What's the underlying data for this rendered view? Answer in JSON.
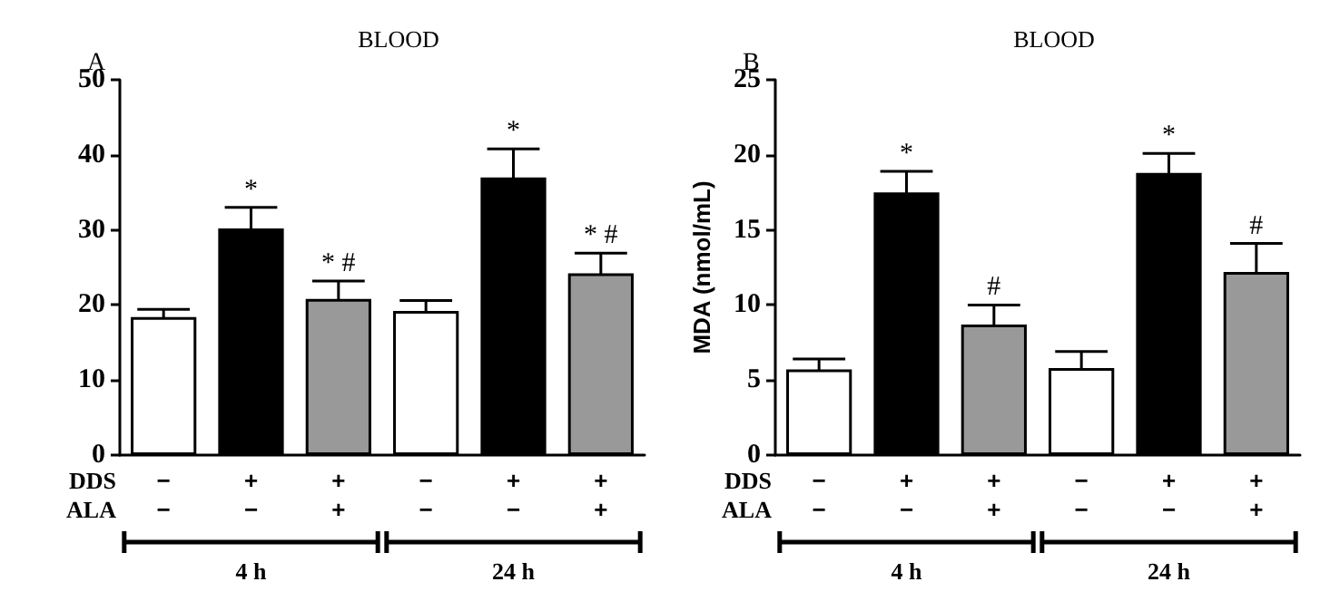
{
  "chart_data": [
    {
      "type": "bar",
      "title": "BLOOD",
      "categories": [
        "−\n−",
        "+\n−",
        "+\n+",
        "−\n−",
        "+\n−",
        "+\n+"
      ],
      "values": [
        18.4,
        30.2,
        20.8,
        19.2,
        37.0,
        24.2
      ],
      "errors": [
        1.0,
        2.8,
        2.4,
        1.4,
        3.8,
        2.7
      ],
      "value_labels": [
        null,
        "*",
        "* #",
        null,
        "*",
        "* #"
      ],
      "colors": [
        "#ffffff",
        "#000000",
        "#999999",
        "#ffffff",
        "#000000",
        "#999999"
      ],
      "ylim": [
        0,
        50
      ],
      "yticks": [
        0,
        10,
        20,
        30,
        40,
        50
      ],
      "annotations": [
        "A",
        "DDS",
        "ALA",
        "4 h",
        "24 h"
      ]
    },
    {
      "type": "bar",
      "title": "BLOOD",
      "ylabel": "MDA (nmol/mL)",
      "categories": [
        "−\n−",
        "+\n−",
        "+\n+",
        "−\n−",
        "+\n−",
        "+\n+"
      ],
      "values": [
        5.7,
        17.5,
        8.7,
        5.8,
        18.8,
        12.2
      ],
      "errors": [
        0.7,
        1.4,
        1.3,
        1.1,
        1.3,
        1.9
      ],
      "value_labels": [
        null,
        "*",
        "#",
        null,
        "*",
        "#"
      ],
      "colors": [
        "#ffffff",
        "#000000",
        "#999999",
        "#ffffff",
        "#000000",
        "#999999"
      ],
      "ylim": [
        0,
        25
      ],
      "yticks": [
        0,
        5,
        10,
        15,
        20,
        25
      ],
      "annotations": [
        "B",
        "DDS",
        "ALA",
        "4 h",
        "24 h"
      ]
    }
  ]
}
